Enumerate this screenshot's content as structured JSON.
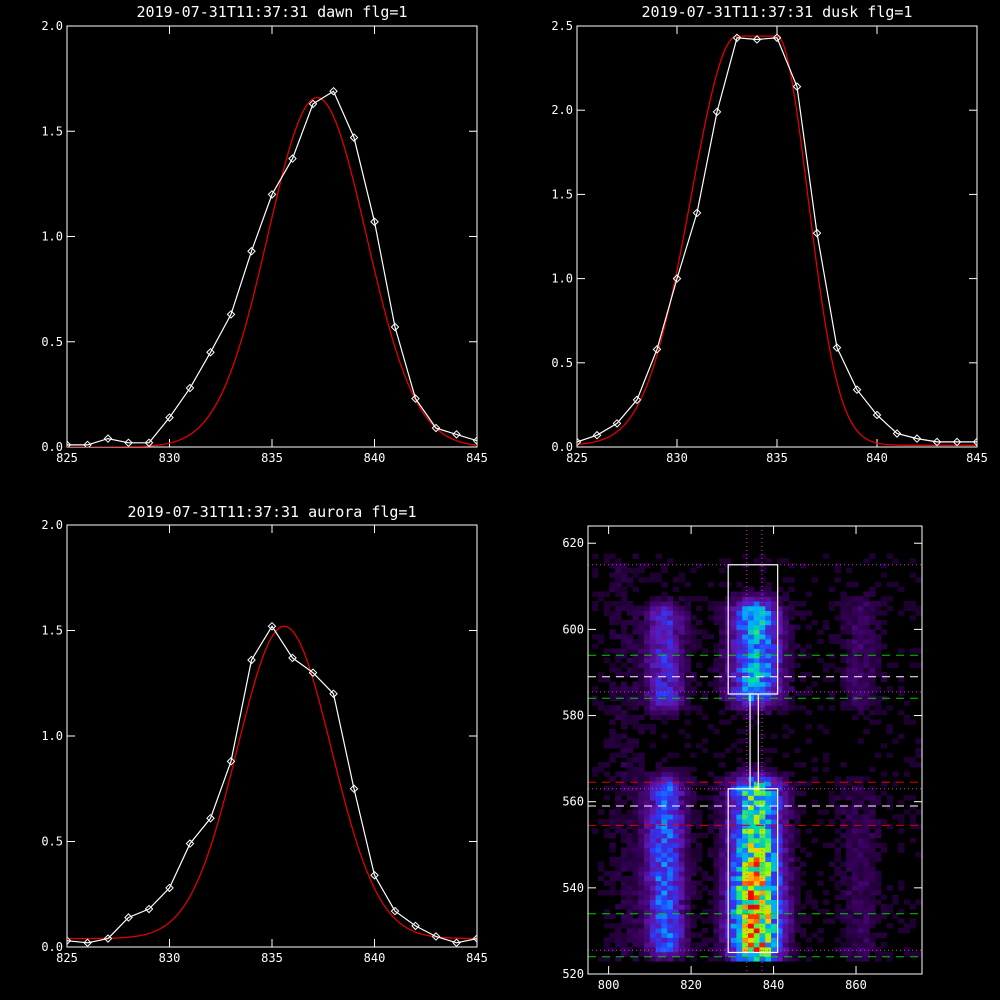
{
  "colors": {
    "background": "#000000",
    "axes": "#ffffff",
    "data_line": "#ffffff",
    "fit_line": "#e00000",
    "box": "#ffffff",
    "dotted": "#cc33cc",
    "green_dash": "#00cc00",
    "red_dash": "#dd0000",
    "white_dash": "#ffffff"
  },
  "chart_data": [
    {
      "type": "line",
      "title": "2019-07-31T11:37:31 dawn flg=1",
      "xlim": [
        825,
        845
      ],
      "ylim": [
        0,
        2.0
      ],
      "xticks": [
        825,
        830,
        835,
        840,
        845
      ],
      "yticks": [
        0.0,
        0.5,
        1.0,
        1.5,
        2.0
      ],
      "xtick_labels": [
        "825",
        "830",
        "835",
        "840",
        "845"
      ],
      "ytick_labels": [
        "0.0",
        "0.5",
        "1.0",
        "1.5",
        "2.0"
      ],
      "series": [
        {
          "role": "data",
          "marker": "diamond",
          "x": [
            825,
            826,
            827,
            828,
            829,
            830,
            831,
            832,
            833,
            834,
            835,
            836,
            837,
            838,
            839,
            840,
            841,
            842,
            843,
            844,
            845
          ],
          "y": [
            0.01,
            0.01,
            0.04,
            0.02,
            0.02,
            0.14,
            0.28,
            0.45,
            0.63,
            0.93,
            1.2,
            1.37,
            1.63,
            1.69,
            1.47,
            1.07,
            0.57,
            0.23,
            0.09,
            0.06,
            0.03
          ]
        },
        {
          "role": "fit",
          "shape": "gaussian",
          "amplitude": 1.66,
          "center": 837.2,
          "sigma": 2.4,
          "offset": 0.0
        }
      ]
    },
    {
      "type": "line",
      "title": "2019-07-31T11:37:31 dusk flg=1",
      "xlim": [
        825,
        845
      ],
      "ylim": [
        0,
        2.5
      ],
      "xticks": [
        825,
        830,
        835,
        840,
        845
      ],
      "yticks": [
        0.0,
        0.5,
        1.0,
        1.5,
        2.0,
        2.5
      ],
      "xtick_labels": [
        "825",
        "830",
        "835",
        "840",
        "845"
      ],
      "ytick_labels": [
        "0.0",
        "0.5",
        "1.0",
        "1.5",
        "2.0",
        "2.5"
      ],
      "series": [
        {
          "role": "data",
          "marker": "diamond",
          "x": [
            825,
            826,
            827,
            828,
            829,
            830,
            831,
            832,
            833,
            834,
            835,
            836,
            837,
            838,
            839,
            840,
            841,
            842,
            843,
            844,
            845
          ],
          "y": [
            0.03,
            0.07,
            0.14,
            0.28,
            0.58,
            1.0,
            1.39,
            1.99,
            2.43,
            2.42,
            2.43,
            2.14,
            1.27,
            0.59,
            0.34,
            0.19,
            0.08,
            0.05,
            0.03,
            0.03,
            0.03
          ]
        },
        {
          "role": "fit",
          "shape": "flattop",
          "amplitude": 2.43,
          "center": 834.0,
          "half_width": 1.0,
          "sigma_left": 2.3,
          "sigma_right": 1.55,
          "offset": 0.01
        }
      ]
    },
    {
      "type": "line",
      "title": "2019-07-31T11:37:31 aurora flg=1",
      "xlim": [
        825,
        845
      ],
      "ylim": [
        0,
        2.0
      ],
      "xticks": [
        825,
        830,
        835,
        840,
        845
      ],
      "yticks": [
        0.0,
        0.5,
        1.0,
        1.5,
        2.0
      ],
      "xtick_labels": [
        "825",
        "830",
        "835",
        "840",
        "845"
      ],
      "ytick_labels": [
        "0.0",
        "0.5",
        "1.0",
        "1.5",
        "2.0"
      ],
      "series": [
        {
          "role": "data",
          "marker": "diamond",
          "x": [
            825,
            826,
            827,
            828,
            829,
            830,
            831,
            832,
            833,
            834,
            835,
            836,
            837,
            838,
            839,
            840,
            841,
            842,
            843,
            844,
            845
          ],
          "y": [
            0.03,
            0.02,
            0.04,
            0.14,
            0.18,
            0.28,
            0.49,
            0.61,
            0.88,
            1.36,
            1.52,
            1.37,
            1.3,
            1.2,
            0.75,
            0.34,
            0.17,
            0.1,
            0.05,
            0.02,
            0.04
          ]
        },
        {
          "role": "fit",
          "shape": "gaussian",
          "amplitude": 1.48,
          "center": 835.6,
          "sigma": 2.3,
          "offset": 0.04
        }
      ]
    },
    {
      "type": "heatmap",
      "title": "",
      "xlim": [
        795,
        876
      ],
      "ylim": [
        520,
        624
      ],
      "xticks": [
        800,
        820,
        840,
        860
      ],
      "yticks": [
        520,
        540,
        560,
        580,
        600,
        620
      ],
      "xtick_labels": [
        "800",
        "820",
        "840",
        "860"
      ],
      "ytick_labels": [
        "520",
        "540",
        "560",
        "580",
        "600",
        "620"
      ],
      "columns": [
        {
          "center": 813,
          "width": 7,
          "segments": [
            [
              527,
              562,
              0.42
            ],
            [
              584,
              602,
              0.3
            ]
          ]
        },
        {
          "center": 835,
          "width": 9,
          "segments": [
            [
              525,
              562,
              0.95
            ],
            [
              585,
              603,
              0.55
            ]
          ]
        },
        {
          "center": 860,
          "width": 7,
          "segments": [
            [
              525,
              560,
              0.08
            ],
            [
              584,
              604,
              0.1
            ]
          ]
        },
        {
          "center": 803,
          "width": 6,
          "segments": [
            [
              525,
              615,
              0.04
            ]
          ]
        }
      ],
      "boxes": [
        {
          "x0": 829,
          "x1": 841,
          "y0": 585,
          "y1": 615
        },
        {
          "x0": 829,
          "x1": 841,
          "y0": 525,
          "y1": 563
        },
        {
          "x0": 834.3,
          "x1": 836.3,
          "y0": 563,
          "y1": 585
        }
      ],
      "dotted_lines": [
        {
          "orient": "h",
          "value": 615
        },
        {
          "orient": "h",
          "value": 585.5
        },
        {
          "orient": "h",
          "value": 563
        },
        {
          "orient": "h",
          "value": 525.5
        },
        {
          "orient": "v",
          "value": 833.5
        },
        {
          "orient": "v",
          "value": 837.2
        }
      ],
      "dashed_lines": [
        {
          "value": 594,
          "color": "#00cc00"
        },
        {
          "value": 584,
          "color": "#00cc00"
        },
        {
          "value": 534,
          "color": "#00cc00"
        },
        {
          "value": 524,
          "color": "#00cc00"
        },
        {
          "value": 589,
          "color": "#ffffff"
        },
        {
          "value": 559,
          "color": "#ffffff"
        },
        {
          "value": 564.5,
          "color": "#dd0000"
        },
        {
          "value": 554.5,
          "color": "#dd0000"
        }
      ]
    }
  ]
}
